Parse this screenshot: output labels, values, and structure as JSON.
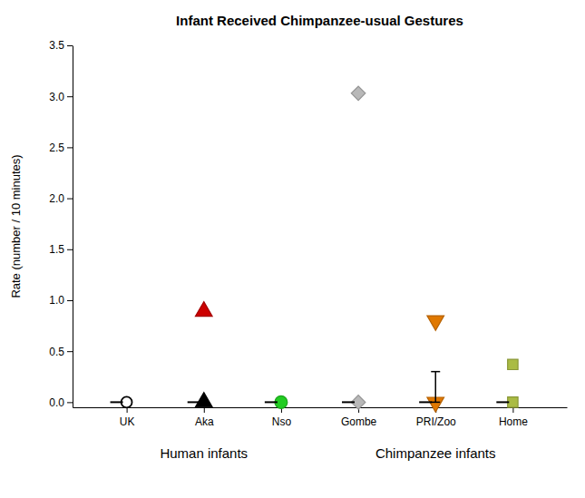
{
  "chart_data": {
    "type": "scatter",
    "title": "Infant Received Chimpanzee-usual Gestures",
    "ylabel": "Rate (number / 10 minutes)",
    "xlim": [
      0.3,
      6.7
    ],
    "xticks": [
      {
        "value": 1,
        "label": "UK"
      },
      {
        "value": 2,
        "label": "Aka"
      },
      {
        "value": 3,
        "label": "Nso"
      },
      {
        "value": 4,
        "label": "Gombe"
      },
      {
        "value": 5,
        "label": "PRI/Zoo"
      },
      {
        "value": 6,
        "label": "Home"
      }
    ],
    "ylim": [
      -0.05,
      3.5
    ],
    "yticks": [
      {
        "value": 0.0,
        "label": "0.0"
      },
      0.5,
      {
        "value": 1.0,
        "label": "1.0"
      },
      1.5,
      {
        "value": 2.0,
        "label": "2.0"
      },
      2.5,
      {
        "value": 3.0,
        "label": "3.0"
      },
      3.5
    ],
    "grid": false,
    "points": [
      {
        "x": 1,
        "y": 0.0,
        "marker": "circle-open",
        "color": "black"
      },
      {
        "x": 0.87,
        "y": 0.0,
        "marker": "dash",
        "color": "black"
      },
      {
        "x": 2,
        "y": 0.89,
        "marker": "triangle-up",
        "color": "#cc0000"
      },
      {
        "x": 2,
        "y": 0.0,
        "marker": "triangle-up",
        "color": "black"
      },
      {
        "x": 1.87,
        "y": 0.0,
        "marker": "dash",
        "color": "black"
      },
      {
        "x": 3,
        "y": 0.0,
        "marker": "circle",
        "color": "#22cc22"
      },
      {
        "x": 2.87,
        "y": 0.0,
        "marker": "dash",
        "color": "black"
      },
      {
        "x": 4,
        "y": 3.03,
        "marker": "diamond",
        "color": "#b8b8b8"
      },
      {
        "x": 4,
        "y": 0.0,
        "marker": "diamond",
        "color": "#b8b8b8"
      },
      {
        "x": 3.87,
        "y": 0.0,
        "marker": "dash",
        "color": "black"
      },
      {
        "x": 5,
        "y": 0.8,
        "marker": "triangle-down",
        "color": "#e07800"
      },
      {
        "x": 5,
        "y": 0.0,
        "marker": "triangle-down",
        "color": "#e07800"
      },
      {
        "x": 4.87,
        "y": 0.0,
        "marker": "dash",
        "color": "black"
      },
      {
        "x": 6,
        "y": 0.37,
        "marker": "square",
        "color": "#aabb44"
      },
      {
        "x": 6,
        "y": 0.0,
        "marker": "square",
        "color": "#aabb44"
      },
      {
        "x": 5.87,
        "y": 0.0,
        "marker": "dash",
        "color": "black"
      }
    ],
    "errorbars": [
      {
        "x": 5,
        "y": 0.0,
        "yerr_low": 0.0,
        "yerr_high": 0.3,
        "color": "black"
      }
    ],
    "annotations": [
      {
        "text": "Human infants",
        "x": 2.0
      },
      {
        "text": "Chimpanzee infants",
        "x": 5.0
      }
    ]
  }
}
